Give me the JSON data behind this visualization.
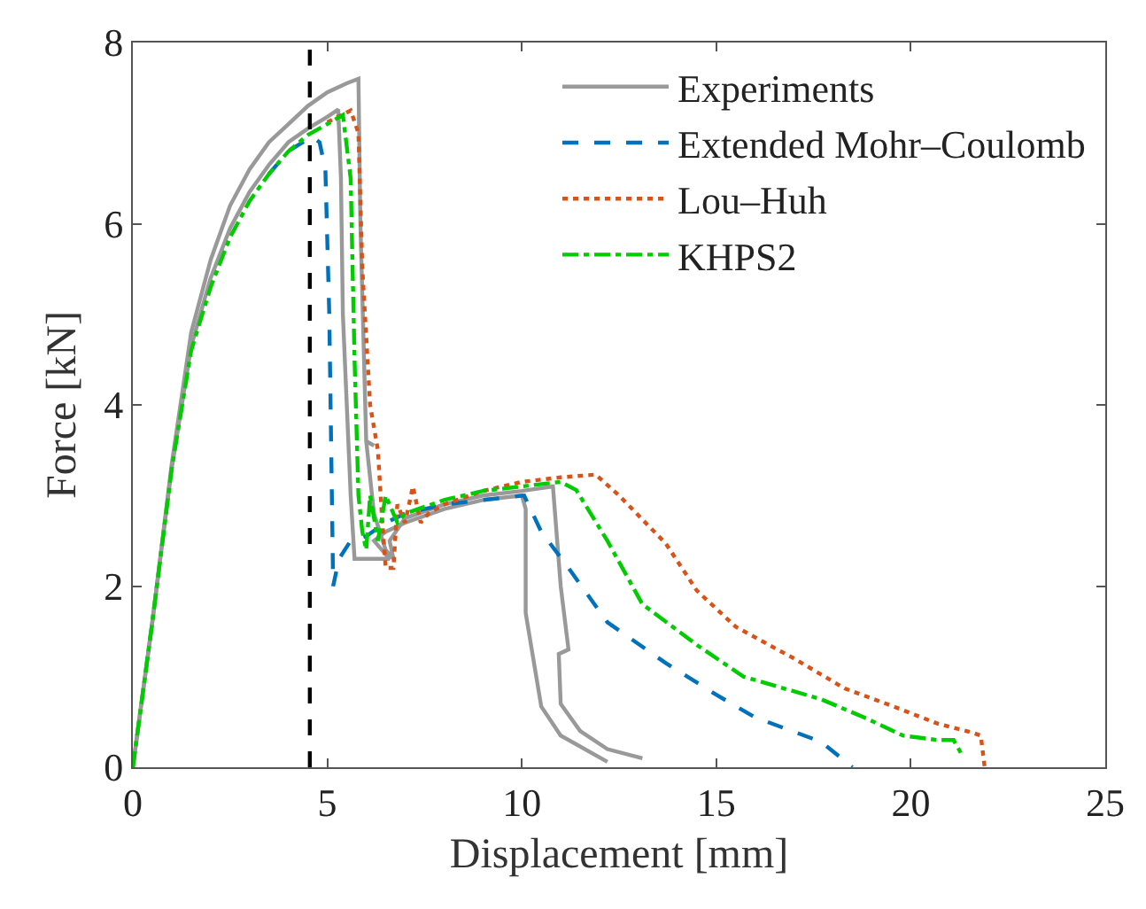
{
  "chart_data": {
    "type": "line",
    "xlabel": "Displacement [mm]",
    "ylabel": "Force [kN]",
    "xlim": [
      0,
      25
    ],
    "ylim": [
      0,
      8
    ],
    "xticks": [
      0,
      5,
      10,
      15,
      20,
      25
    ],
    "yticks": [
      0,
      2,
      4,
      6,
      8
    ],
    "legend": "top right",
    "marker": "none",
    "series": [
      {
        "name": "Experiments",
        "color": "#999999",
        "line_style": "solid",
        "x": [
          0,
          0.5,
          1,
          1.5,
          2,
          2.5,
          3,
          3.5,
          4,
          4.5,
          5,
          5.28,
          5.35,
          5.4,
          5.5,
          5.6,
          5.7,
          6.6,
          6.2,
          6.5,
          7,
          8,
          9,
          10,
          10.1,
          10.1,
          10.5,
          11,
          12.2
        ],
        "values": [
          0,
          1.6,
          3.3,
          4.65,
          5.4,
          5.95,
          6.35,
          6.65,
          6.9,
          7.05,
          7.18,
          7.26,
          6.5,
          5,
          4,
          3,
          2.3,
          2.3,
          2.5,
          2.6,
          2.7,
          2.85,
          2.95,
          3.0,
          2.85,
          1.7,
          0.67,
          0.35,
          0.06
        ]
      },
      {
        "color": "#999999",
        "line_style": "solid",
        "x": [
          0,
          0.5,
          1,
          1.5,
          2,
          2.5,
          3,
          3.5,
          4,
          4.5,
          5,
          5.5,
          5.8,
          5.85,
          6.0,
          6.2,
          6.0,
          6.2,
          6.5,
          6.7,
          6.6,
          7,
          8,
          9,
          10,
          10.8,
          11.0,
          11.2,
          10.95,
          11.0,
          11.5,
          12.2,
          13.1
        ],
        "values": [
          0,
          1.6,
          3.35,
          4.8,
          5.6,
          6.2,
          6.6,
          6.9,
          7.1,
          7.3,
          7.45,
          7.55,
          7.6,
          6.0,
          3.6,
          3.55,
          3.6,
          2.8,
          2.4,
          2.3,
          2.5,
          2.75,
          2.9,
          3.0,
          3.05,
          3.1,
          2.0,
          1.3,
          1.25,
          0.7,
          0.4,
          0.2,
          0.1
        ]
      },
      {
        "name": "Extended Mohr–Coulomb",
        "color": "#0072bd",
        "line_style": "dashed",
        "x": [
          3.5,
          4,
          4.6,
          4.8,
          4.95,
          5.05,
          5.1,
          5.15,
          5.3,
          5.6,
          6,
          6.5,
          7,
          8,
          9,
          10.06,
          10.5,
          11.2,
          12.2,
          13.7,
          15,
          16,
          17.7,
          18.5
        ],
        "values": [
          6.55,
          6.8,
          6.96,
          6.9,
          6.6,
          5,
          3.5,
          2.0,
          2.3,
          2.5,
          2.55,
          2.7,
          2.8,
          2.9,
          2.95,
          3.0,
          2.6,
          2.2,
          1.6,
          1.15,
          0.8,
          0.55,
          0.28,
          0
        ]
      },
      {
        "name": "Lou–Huh",
        "color": "#d95319",
        "line_style": "dotted",
        "x": [
          5,
          5.6,
          5.8,
          5.9,
          6.1,
          6.3,
          6.4,
          6.5,
          6.7,
          6.8,
          7.0,
          7.2,
          7.4,
          7.6,
          8,
          9,
          10,
          11,
          11.9,
          12.5,
          13.7,
          14.5,
          15.5,
          17,
          18.3,
          19.5,
          20.7,
          21.6,
          21.8,
          21.9
        ],
        "values": [
          7.12,
          7.25,
          7.0,
          5.5,
          4.0,
          3.5,
          2.8,
          2.2,
          2.2,
          2.9,
          2.7,
          3.1,
          2.7,
          2.8,
          2.9,
          3.05,
          3.15,
          3.2,
          3.23,
          3.0,
          2.47,
          1.95,
          1.55,
          1.2,
          0.87,
          0.68,
          0.48,
          0.38,
          0.35,
          0
        ]
      },
      {
        "name": "KHPS2",
        "color": "#00cc00",
        "line_style": "dashdot",
        "x": [
          0,
          0.5,
          1,
          1.5,
          2,
          2.5,
          3,
          3.5,
          4,
          4.5,
          5,
          5.4,
          5.6,
          5.7,
          5.8,
          5.9,
          6.0,
          6.1,
          6.3,
          6.5,
          6.8,
          7,
          8,
          9,
          10,
          11,
          11.4,
          12.2,
          13.1,
          14.5,
          15.7,
          17.7,
          18.8,
          19.8,
          20.7,
          21.1,
          21.3
        ],
        "values": [
          0,
          1.6,
          3.3,
          4.6,
          5.3,
          5.85,
          6.25,
          6.55,
          6.8,
          6.98,
          7.1,
          7.2,
          6.5,
          4.5,
          3.0,
          2.6,
          2.4,
          3.0,
          2.5,
          3.0,
          2.7,
          2.8,
          2.95,
          3.05,
          3.1,
          3.15,
          3.06,
          2.5,
          1.8,
          1.35,
          1.0,
          0.75,
          0.55,
          0.35,
          0.3,
          0.3,
          0.15
        ]
      }
    ],
    "ref_lines": [
      {
        "axis": "x",
        "value": 4.55,
        "color": "#000000",
        "line_style": "dashed"
      }
    ]
  }
}
